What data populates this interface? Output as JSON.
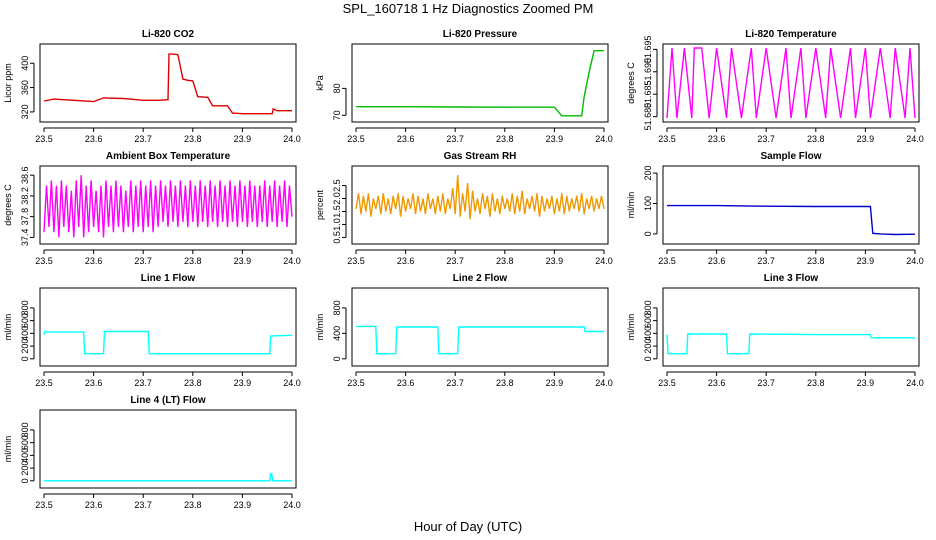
{
  "figure": {
    "title": "SPL_160718  1 Hz Diagnostics Zoomed PM",
    "xlabel": "Hour of Day (UTC)"
  },
  "chart_data": [
    {
      "type": "line",
      "title": "Li-820 CO2",
      "ylabel": "Licor ppm",
      "color": "#dd0000",
      "xlim": [
        23.5,
        24.0
      ],
      "ylim": [
        310,
        425
      ],
      "xticks": [
        "23.5",
        "23.6",
        "23.7",
        "23.8",
        "23.9",
        "24.0"
      ],
      "yticks": [
        320,
        360,
        400
      ],
      "series": [
        {
          "x": [
            23.5,
            23.52,
            23.56,
            23.6,
            23.62,
            23.66,
            23.7,
            23.73,
            23.75,
            23.752,
            23.76,
            23.77,
            23.78,
            23.79,
            23.8,
            23.81,
            23.83,
            23.84,
            23.87,
            23.88,
            23.9,
            23.92,
            23.96,
            23.962,
            23.97,
            24.0
          ],
          "y": [
            338,
            341,
            339,
            337,
            343,
            342,
            339,
            339,
            340,
            415,
            415,
            414,
            374,
            372,
            371,
            345,
            344,
            330,
            330,
            318,
            317,
            317,
            317,
            325,
            322,
            322
          ]
        }
      ]
    },
    {
      "type": "line",
      "title": "Li-820 Pressure",
      "ylabel": "kPa",
      "color": "#00bb00",
      "xlim": [
        23.5,
        24.0
      ],
      "ylim": [
        69,
        95
      ],
      "xticks": [
        "23.5",
        "23.6",
        "23.7",
        "23.8",
        "23.9",
        "24.0"
      ],
      "yticks": [
        70,
        80
      ],
      "series": [
        {
          "x": [
            23.5,
            23.6,
            23.7,
            23.8,
            23.9,
            23.915,
            23.955,
            23.96,
            23.97,
            23.98,
            24.0
          ],
          "y": [
            73.2,
            73.2,
            73.1,
            73.0,
            73.0,
            69.8,
            69.8,
            77,
            86,
            94,
            94
          ]
        }
      ]
    },
    {
      "type": "line",
      "title": "Li-820 Temperature",
      "ylabel": "degrees C",
      "color": "#ff00ff",
      "xlim": [
        23.5,
        24.0
      ],
      "ylim": [
        51.6797,
        51.6953
      ],
      "xticks": [
        "23.5",
        "23.6",
        "23.7",
        "23.8",
        "23.9",
        "24.0"
      ],
      "yticks": [
        "51.680",
        "51.685",
        "51.690",
        "51.695"
      ],
      "series": [
        {
          "x": [
            23.5,
            23.51,
            23.52,
            23.535,
            23.55,
            23.555,
            23.57,
            23.585,
            23.6,
            23.62,
            23.63,
            23.65,
            23.67,
            23.68,
            23.7,
            23.72,
            23.74,
            23.75,
            23.77,
            23.78,
            23.8,
            23.82,
            23.83,
            23.85,
            23.87,
            23.88,
            23.9,
            23.91,
            23.93,
            23.95,
            23.96,
            23.98,
            23.99,
            24.0
          ],
          "y": [
            51.6797,
            51.6953,
            51.6797,
            51.6953,
            51.6797,
            51.6953,
            51.6953,
            51.6797,
            51.6953,
            51.6797,
            51.6953,
            51.6797,
            51.6953,
            51.6797,
            51.6953,
            51.6797,
            51.6953,
            51.6797,
            51.6953,
            51.6797,
            51.6953,
            51.6797,
            51.6953,
            51.6797,
            51.6953,
            51.6797,
            51.6953,
            51.6797,
            51.6953,
            51.6797,
            51.6953,
            51.6797,
            51.6953,
            51.6797
          ]
        }
      ]
    },
    {
      "type": "line",
      "title": "Ambient Box Temperature",
      "ylabel": "degrees C",
      "color": "#ff00ff",
      "xlim": [
        23.5,
        24.0
      ],
      "ylim": [
        37.35,
        38.7
      ],
      "xticks": [
        "23.5",
        "23.6",
        "23.7",
        "23.8",
        "23.9",
        "24.0"
      ],
      "yticks": [
        "37.4",
        "37.8",
        "38.2",
        "38.6"
      ],
      "series": [
        {
          "x": [
            23.5,
            23.505,
            23.51,
            23.515,
            23.52,
            23.525,
            23.53,
            23.535,
            23.54,
            23.545,
            23.55,
            23.555,
            23.56,
            23.565,
            23.57,
            23.575,
            23.58,
            23.585,
            23.59,
            23.595,
            23.6,
            23.605,
            23.61,
            23.615,
            23.62,
            23.625,
            23.63,
            23.635,
            23.64,
            23.645,
            23.65,
            23.655,
            23.66,
            23.665,
            23.67,
            23.675,
            23.68,
            23.685,
            23.69,
            23.695,
            23.7,
            23.705,
            23.71,
            23.715,
            23.72,
            23.725,
            23.73,
            23.735,
            23.74,
            23.745,
            23.75,
            23.755,
            23.76,
            23.765,
            23.77,
            23.775,
            23.78,
            23.785,
            23.79,
            23.795,
            23.8,
            23.805,
            23.81,
            23.815,
            23.82,
            23.825,
            23.83,
            23.835,
            23.84,
            23.845,
            23.85,
            23.855,
            23.86,
            23.865,
            23.87,
            23.875,
            23.88,
            23.885,
            23.89,
            23.895,
            23.9,
            23.905,
            23.91,
            23.915,
            23.92,
            23.925,
            23.93,
            23.935,
            23.94,
            23.945,
            23.95,
            23.955,
            23.96,
            23.965,
            23.97,
            23.975,
            23.98,
            23.985,
            23.99,
            23.995,
            24.0
          ],
          "y": [
            37.5,
            38.4,
            37.6,
            38.5,
            37.5,
            38.4,
            37.4,
            38.5,
            37.6,
            38.4,
            37.5,
            38.3,
            37.4,
            38.5,
            37.6,
            38.6,
            37.4,
            38.4,
            37.5,
            38.5,
            37.6,
            38.3,
            37.5,
            38.4,
            37.4,
            38.5,
            37.6,
            38.4,
            37.5,
            38.5,
            37.6,
            38.4,
            37.5,
            38.3,
            37.6,
            38.5,
            37.5,
            38.4,
            37.6,
            38.5,
            37.5,
            38.4,
            37.6,
            38.5,
            37.5,
            38.4,
            37.6,
            38.5,
            37.7,
            38.4,
            37.6,
            38.5,
            37.7,
            38.4,
            37.6,
            38.5,
            37.7,
            38.4,
            37.6,
            38.5,
            37.7,
            38.4,
            37.6,
            38.5,
            37.7,
            38.4,
            37.6,
            38.5,
            37.7,
            38.4,
            37.6,
            38.5,
            37.7,
            38.4,
            37.6,
            38.5,
            37.7,
            38.4,
            37.6,
            38.5,
            37.7,
            38.4,
            37.6,
            38.5,
            37.7,
            38.4,
            37.6,
            38.4,
            37.7,
            38.5,
            37.6,
            38.4,
            37.7,
            38.5,
            37.6,
            38.4,
            37.7,
            38.5,
            37.6,
            38.4,
            37.8
          ]
        }
      ]
    },
    {
      "type": "line",
      "title": "Gas Stream RH",
      "ylabel": "percent",
      "color": "#ee9900",
      "xlim": [
        23.5,
        24.0
      ],
      "ylim": [
        0.4,
        3.1
      ],
      "xticks": [
        "23.5",
        "23.6",
        "23.7",
        "23.8",
        "23.9",
        "24.0"
      ],
      "yticks": [
        "0.5",
        "1.0",
        "1.5",
        "2.0",
        "2.5"
      ],
      "series": [
        {
          "x": [
            23.5,
            23.505,
            23.51,
            23.515,
            23.52,
            23.525,
            23.53,
            23.535,
            23.54,
            23.545,
            23.55,
            23.555,
            23.56,
            23.565,
            23.57,
            23.575,
            23.58,
            23.585,
            23.59,
            23.595,
            23.6,
            23.605,
            23.61,
            23.615,
            23.62,
            23.625,
            23.63,
            23.635,
            23.64,
            23.645,
            23.65,
            23.655,
            23.66,
            23.665,
            23.67,
            23.675,
            23.68,
            23.685,
            23.69,
            23.695,
            23.7,
            23.705,
            23.71,
            23.715,
            23.72,
            23.725,
            23.73,
            23.735,
            23.74,
            23.745,
            23.75,
            23.755,
            23.76,
            23.765,
            23.77,
            23.775,
            23.78,
            23.785,
            23.79,
            23.795,
            23.8,
            23.805,
            23.81,
            23.815,
            23.82,
            23.825,
            23.83,
            23.835,
            23.84,
            23.845,
            23.85,
            23.855,
            23.86,
            23.865,
            23.87,
            23.875,
            23.88,
            23.885,
            23.89,
            23.895,
            23.9,
            23.905,
            23.91,
            23.915,
            23.92,
            23.925,
            23.93,
            23.935,
            23.94,
            23.945,
            23.95,
            23.955,
            23.96,
            23.965,
            23.97,
            23.975,
            23.98,
            23.985,
            23.99,
            23.995,
            24.0
          ],
          "y": [
            1.6,
            2.2,
            1.4,
            2.1,
            1.5,
            2.2,
            1.3,
            2.0,
            1.6,
            2.1,
            1.4,
            2.2,
            1.5,
            2.0,
            1.4,
            2.1,
            1.6,
            2.2,
            1.3,
            2.1,
            1.5,
            2.0,
            1.6,
            2.2,
            1.4,
            2.1,
            1.5,
            2.0,
            1.4,
            2.2,
            1.6,
            2.0,
            1.4,
            2.1,
            1.5,
            2.2,
            1.4,
            2.0,
            1.6,
            2.4,
            1.4,
            2.9,
            1.3,
            2.2,
            1.5,
            2.6,
            1.2,
            2.3,
            1.5,
            2.0,
            1.4,
            2.2,
            1.6,
            2.1,
            1.3,
            2.2,
            1.5,
            2.0,
            1.4,
            2.1,
            1.6,
            2.0,
            1.5,
            2.2,
            1.4,
            2.1,
            1.5,
            2.3,
            1.4,
            2.0,
            1.6,
            2.1,
            1.5,
            2.2,
            1.3,
            2.1,
            1.5,
            2.0,
            1.6,
            2.1,
            1.4,
            2.0,
            1.5,
            2.2,
            1.4,
            2.1,
            1.5,
            2.0,
            1.6,
            2.1,
            1.5,
            2.2,
            1.4,
            2.0,
            1.6,
            2.1,
            1.5,
            2.0,
            1.6,
            2.1,
            1.6
          ]
        }
      ]
    },
    {
      "type": "line",
      "title": "Sample Flow",
      "ylabel": "ml/min",
      "color": "#0000cc",
      "xlim": [
        23.5,
        24.0
      ],
      "ylim": [
        -20,
        210
      ],
      "xticks": [
        "23.5",
        "23.6",
        "23.7",
        "23.8",
        "23.9",
        "24.0"
      ],
      "yticks": [
        0,
        100,
        200
      ],
      "series": [
        {
          "x": [
            23.5,
            23.6,
            23.7,
            23.8,
            23.9,
            23.91,
            23.915,
            23.93,
            23.96,
            24.0
          ],
          "y": [
            93,
            93,
            91,
            90,
            90,
            90,
            2,
            0,
            -2,
            -1
          ]
        }
      ]
    },
    {
      "type": "line",
      "title": "Line 1 Flow",
      "ylabel": "ml/min",
      "color": "#00ffff",
      "xlim": [
        23.5,
        24.0
      ],
      "ylim": [
        -50,
        1050
      ],
      "xticks": [
        "23.5",
        "23.6",
        "23.7",
        "23.8",
        "23.9",
        "24.0"
      ],
      "yticks": [
        0,
        200,
        400,
        600,
        800
      ],
      "series": [
        {
          "x": [
            23.5,
            23.502,
            23.51,
            23.58,
            23.582,
            23.62,
            23.622,
            23.71,
            23.712,
            23.955,
            23.957,
            24.0
          ],
          "y": [
            380,
            430,
            420,
            420,
            80,
            80,
            430,
            430,
            80,
            80,
            360,
            370
          ]
        }
      ]
    },
    {
      "type": "line",
      "title": "Line 2 Flow",
      "ylabel": "ml/min",
      "color": "#00ffff",
      "xlim": [
        23.5,
        24.0
      ],
      "ylim": [
        -50,
        1050
      ],
      "xticks": [
        "23.5",
        "23.6",
        "23.7",
        "23.8",
        "23.9",
        "24.0"
      ],
      "yticks": [
        0,
        400,
        800
      ],
      "series": [
        {
          "x": [
            23.5,
            23.54,
            23.542,
            23.58,
            23.582,
            23.665,
            23.667,
            23.705,
            23.707,
            23.96,
            23.962,
            24.0
          ],
          "y": [
            510,
            510,
            80,
            80,
            500,
            500,
            80,
            80,
            500,
            500,
            430,
            430
          ]
        }
      ]
    },
    {
      "type": "line",
      "title": "Line 3 Flow",
      "ylabel": "ml/min",
      "color": "#00ffff",
      "xlim": [
        23.5,
        24.0
      ],
      "ylim": [
        -50,
        1050
      ],
      "xticks": [
        "23.5",
        "23.6",
        "23.7",
        "23.8",
        "23.9",
        "24.0"
      ],
      "yticks": [
        0,
        200,
        400,
        600,
        800
      ],
      "series": [
        {
          "x": [
            23.5,
            23.502,
            23.54,
            23.542,
            23.62,
            23.622,
            23.665,
            23.667,
            23.8,
            23.91,
            23.912,
            24.0
          ],
          "y": [
            380,
            80,
            80,
            390,
            390,
            80,
            80,
            390,
            380,
            380,
            330,
            330
          ]
        }
      ]
    },
    {
      "type": "line",
      "title": "Line 4 (LT) Flow",
      "ylabel": "ml/min",
      "color": "#00ffff",
      "xlim": [
        23.5,
        24.0
      ],
      "ylim": [
        -50,
        1050
      ],
      "xticks": [
        "23.5",
        "23.6",
        "23.7",
        "23.8",
        "23.9",
        "24.0"
      ],
      "yticks": [
        0,
        200,
        400,
        600,
        800
      ],
      "series": [
        {
          "x": [
            23.5,
            23.7,
            23.955,
            23.957,
            23.959,
            23.961,
            24.0
          ],
          "y": [
            0,
            0,
            0,
            110,
            110,
            0,
            0
          ]
        }
      ]
    }
  ]
}
